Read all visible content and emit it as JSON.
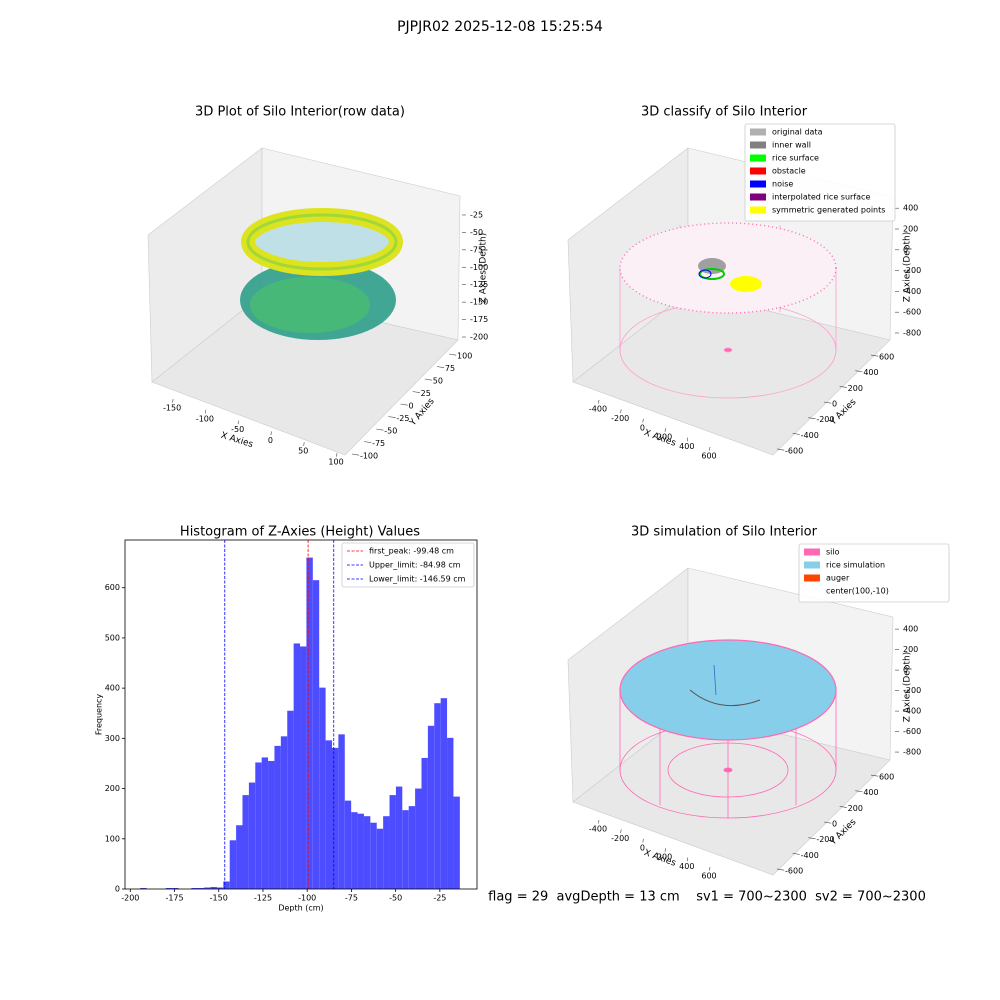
{
  "title": "PJPJR02 2025-12-08 15:25:54",
  "footer": "flag = 29  avgDepth = 13 cm    sv1 = 700~2300  sv2 = 700~2300",
  "chart_data": [
    {
      "type": "scatter3d",
      "title": "3D Plot of Silo Interior(row data)",
      "xlabel": "X Axies",
      "ylabel": "Y Axies",
      "zlabel": "Z Axies (Depth)",
      "xlim": [
        -170,
        110
      ],
      "xticks": [
        -150,
        -100,
        -50,
        0,
        50,
        100
      ],
      "ylim": [
        -110,
        110
      ],
      "yticks": [
        -100,
        -75,
        -50,
        -25,
        0,
        25,
        50,
        75,
        100
      ],
      "zlim": [
        -210,
        -10
      ],
      "zticks": [
        -200,
        -175,
        -150,
        -125,
        -100,
        -75,
        -50,
        -25
      ]
    },
    {
      "type": "scatter3d",
      "title": "3D classify of Silo Interior",
      "xlabel": "X Axies",
      "ylabel": "Y Axies",
      "zlabel": "Z Axies (Depth)",
      "xlim": [
        -500,
        700
      ],
      "xticks": [
        -400,
        -200,
        0,
        200,
        400,
        600
      ],
      "ylim": [
        -700,
        700
      ],
      "yticks": [
        -600,
        -400,
        -200,
        0,
        200,
        400,
        600
      ],
      "zlim": [
        -900,
        450
      ],
      "zticks": [
        -800,
        -600,
        -400,
        -200,
        0,
        200,
        400
      ],
      "series": [
        {
          "name": "original data",
          "color": "#b0b0b0"
        },
        {
          "name": "inner wall",
          "color": "#808080"
        },
        {
          "name": "rice surface",
          "color": "#00ff00"
        },
        {
          "name": "obstacle",
          "color": "#ff0000"
        },
        {
          "name": "noise",
          "color": "#0000ff"
        },
        {
          "name": "interpolated rice surface",
          "color": "#800080"
        },
        {
          "name": "symmetric generated points",
          "color": "#ffff00"
        }
      ]
    },
    {
      "type": "histogram",
      "title": "Histogram of Z-Axies (Height) Values",
      "xlabel": "Depth (cm)",
      "ylabel": "Frequency",
      "color": "#4d4dff",
      "xlim": [
        -203,
        -4
      ],
      "ylim": [
        0,
        695
      ],
      "xticks": [
        -200,
        -175,
        -150,
        -125,
        -100,
        -75,
        -50,
        -25
      ],
      "yticks": [
        0,
        100,
        200,
        300,
        400,
        500,
        600
      ],
      "bins": [
        -194.4,
        -190.79,
        -187.17,
        -183.56,
        -179.94,
        -176.33,
        -172.72,
        -169.1,
        -165.49,
        -161.87,
        -158.26,
        -154.65,
        -151.03,
        -147.42,
        -143.8,
        -140.19,
        -136.58,
        -132.96,
        -129.35,
        -125.73,
        -122.12,
        -118.51,
        -114.89,
        -111.28,
        -107.66,
        -104.05,
        -100.44,
        -96.82,
        -93.21,
        -89.59,
        -85.98,
        -82.37,
        -78.75,
        -75.14,
        -71.52,
        -67.91,
        -64.3,
        -60.68,
        -57.07,
        -53.45,
        -49.84,
        -46.23,
        -42.61,
        -39.0,
        -35.38,
        -31.77,
        -28.16,
        -24.54,
        -20.93,
        -17.31,
        -13.7
      ],
      "values": [
        2,
        0,
        0,
        0,
        2,
        2,
        0,
        0,
        2,
        2,
        3,
        4,
        3,
        15,
        97,
        127,
        187,
        212,
        252,
        262,
        255,
        285,
        304,
        355,
        489,
        483,
        660,
        615,
        401,
        296,
        281,
        308,
        176,
        153,
        150,
        145,
        132,
        120,
        145,
        187,
        204,
        157,
        165,
        200,
        261,
        325,
        370,
        380,
        301,
        184
      ],
      "lines": [
        {
          "label": "first_peak: -99.48 cm",
          "value": -99.48,
          "color": "#ff0000"
        },
        {
          "label": "Upper_limit: -84.98 cm",
          "value": -84.98,
          "color": "#0000ff"
        },
        {
          "label": "Lower_limit: -146.59 cm",
          "value": -146.59,
          "color": "#0000ff"
        }
      ]
    },
    {
      "type": "scatter3d",
      "title": "3D simulation of Silo Interior",
      "xlabel": "X Axies",
      "ylabel": "Y Axies",
      "zlabel": "Z Axies (Depth)",
      "xlim": [
        -500,
        700
      ],
      "xticks": [
        -400,
        -200,
        0,
        200,
        400,
        600
      ],
      "ylim": [
        -700,
        700
      ],
      "yticks": [
        -600,
        -400,
        -200,
        0,
        200,
        400,
        600
      ],
      "zlim": [
        -900,
        450
      ],
      "zticks": [
        -800,
        -600,
        -400,
        -200,
        0,
        200,
        400
      ],
      "series": [
        {
          "name": "silo",
          "color": "#ff69b4"
        },
        {
          "name": "rice simulation",
          "color": "#87ceeb"
        },
        {
          "name": "auger",
          "color": "#ff4500"
        },
        {
          "name": "center(100,-10)"
        }
      ]
    }
  ]
}
